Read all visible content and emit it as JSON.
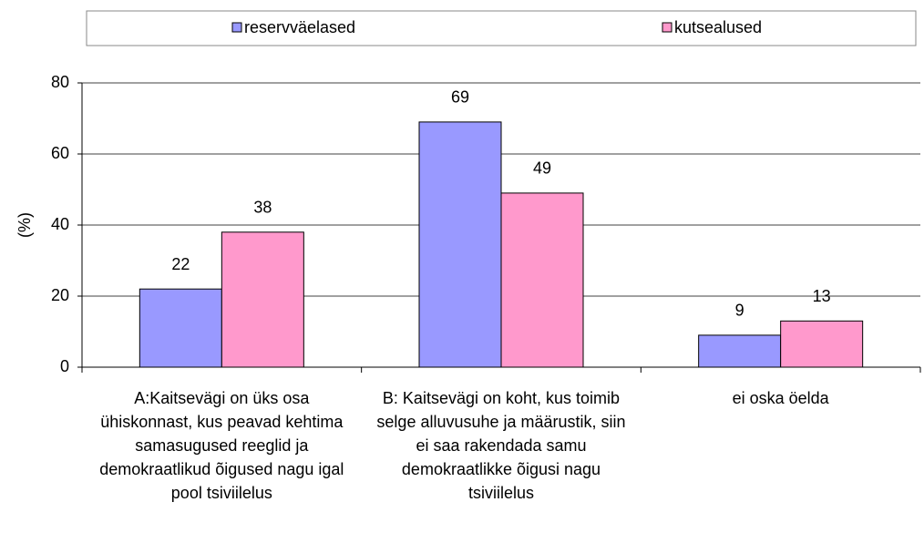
{
  "chart_data": {
    "type": "bar",
    "categories": [
      "A:Kaitsevägi on üks osa ühiskonnast, kus peavad kehtima samasugused reeglid ja demokraatlikud õigused nagu igal pool tsiviilelus",
      "B: Kaitsevägi on koht, kus toimib selge alluvusuhe ja määrustik, siin ei saa rakendada samu demokraatlikke õigusi nagu tsiviilelus",
      "ei oska öelda"
    ],
    "series": [
      {
        "name": "reservväelased",
        "color": "#9999ff",
        "values": [
          22,
          69,
          9
        ]
      },
      {
        "name": "kutsealused",
        "color": "#ff99cc",
        "values": [
          38,
          49,
          13
        ]
      }
    ],
    "y_label": "(%)",
    "ylim": [
      0,
      80
    ],
    "yticks": [
      0,
      20,
      40,
      60,
      80
    ],
    "grid": true,
    "legend": "top"
  }
}
